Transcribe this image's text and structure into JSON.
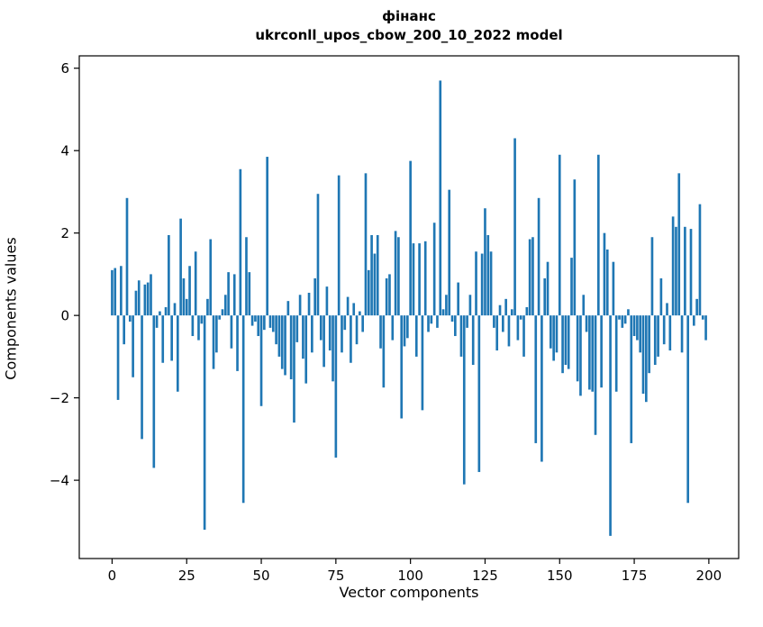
{
  "title_line1": "фінанс",
  "title_line2": "ukrconll_upos_cbow_200_10_2022 model",
  "chart_data": {
    "type": "bar",
    "title": "фінанс\nukrconll_upos_cbow_200_10_2022 model",
    "xlabel": "Vector components",
    "ylabel": "Components values",
    "xlim": [
      -11,
      210
    ],
    "ylim": [
      -5.9,
      6.3
    ],
    "xticks": [
      0,
      25,
      50,
      75,
      100,
      125,
      150,
      175,
      200
    ],
    "yticks": [
      -4,
      -2,
      0,
      2,
      4,
      6
    ],
    "grid": false,
    "legend": false,
    "bar_color": "#1f77b4",
    "bar_width": 0.8,
    "values": [
      1.1,
      1.15,
      -2.05,
      1.2,
      -0.7,
      2.85,
      -0.15,
      -1.5,
      0.6,
      0.85,
      -3.0,
      0.75,
      0.8,
      1.0,
      -3.7,
      -0.3,
      0.1,
      -1.15,
      0.2,
      1.95,
      -1.1,
      0.3,
      -1.85,
      2.35,
      0.9,
      0.4,
      1.2,
      -0.5,
      1.55,
      -0.6,
      -0.2,
      -5.2,
      0.4,
      1.85,
      -1.3,
      -0.9,
      -0.1,
      0.15,
      0.5,
      1.05,
      -0.8,
      1.0,
      -1.35,
      3.55,
      -4.55,
      1.9,
      1.05,
      -0.25,
      -0.15,
      -0.5,
      -2.2,
      -0.35,
      3.85,
      -0.3,
      -0.4,
      -0.7,
      -1.0,
      -1.3,
      -1.45,
      0.35,
      -1.55,
      -2.6,
      -0.65,
      0.5,
      -1.05,
      -1.65,
      0.55,
      -0.9,
      0.9,
      2.95,
      -0.6,
      -1.25,
      0.7,
      -0.85,
      -1.6,
      -3.45,
      3.4,
      -0.9,
      -0.35,
      0.45,
      -1.15,
      0.3,
      -0.7,
      0.1,
      -0.4,
      3.45,
      1.1,
      1.95,
      1.5,
      1.95,
      -0.8,
      -1.75,
      0.9,
      1.0,
      -0.6,
      2.05,
      1.9,
      -2.5,
      -0.75,
      -0.55,
      3.75,
      1.75,
      -1.0,
      1.75,
      -2.3,
      1.8,
      -0.4,
      -0.2,
      2.25,
      -0.3,
      5.7,
      0.15,
      0.5,
      3.05,
      -0.15,
      -0.5,
      0.8,
      -1.0,
      -4.1,
      -0.3,
      0.5,
      -1.2,
      1.55,
      -3.8,
      1.5,
      2.6,
      1.95,
      1.55,
      -0.3,
      -0.85,
      0.25,
      -0.4,
      0.4,
      -0.75,
      0.15,
      4.3,
      -0.6,
      -0.1,
      -1.0,
      0.2,
      1.85,
      1.9,
      -3.1,
      2.85,
      -3.55,
      0.9,
      1.3,
      -0.8,
      -1.1,
      -0.9,
      3.9,
      -1.4,
      -1.2,
      -1.3,
      1.4,
      3.3,
      -1.6,
      -1.95,
      0.5,
      -0.4,
      -1.8,
      -1.85,
      -2.9,
      3.9,
      -1.75,
      2.0,
      1.6,
      -5.35,
      1.3,
      -1.85,
      -0.1,
      -0.3,
      -0.2,
      0.15,
      -3.1,
      -0.5,
      -0.6,
      -0.9,
      -1.9,
      -2.1,
      -1.4,
      1.9,
      -1.2,
      -1.0,
      0.9,
      -0.7,
      0.3,
      -0.85,
      2.4,
      2.15,
      3.45,
      -0.9,
      2.15,
      -4.55,
      2.1,
      -0.25,
      0.4,
      2.7,
      -0.1,
      -0.6
    ]
  }
}
